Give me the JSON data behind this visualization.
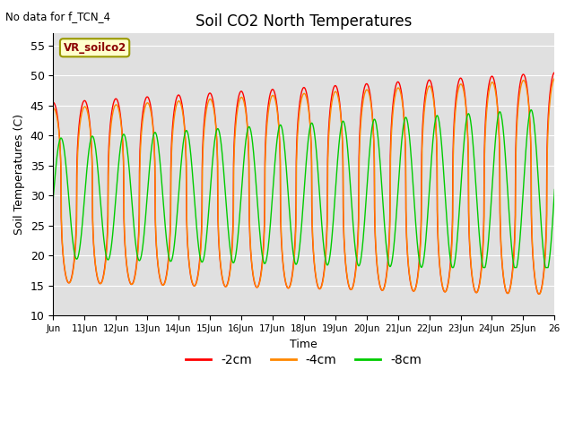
{
  "title": "Soil CO2 North Temperatures",
  "subtitle": "No data for f_TCN_4",
  "xlabel": "Time",
  "ylabel": "Soil Temperatures (C)",
  "ylim": [
    10,
    57
  ],
  "yticks": [
    10,
    15,
    20,
    25,
    30,
    35,
    40,
    45,
    50,
    55
  ],
  "legend_label": "VR_soilco2",
  "series_labels": [
    "-2cm",
    "-4cm",
    "-8cm"
  ],
  "series_colors": [
    "#ff0000",
    "#ff8800",
    "#00cc00"
  ],
  "background_color": "#e0e0e0",
  "x_tick_labels": [
    "Jun",
    "11Jun",
    "12Jun",
    "13Jun",
    "14Jun",
    "15Jun",
    "16Jun",
    "17Jun",
    "18Jun",
    "19Jun",
    "20Jun",
    "21Jun",
    "22Jun",
    "23Jun",
    "24Jun",
    "25Jun",
    "26"
  ]
}
